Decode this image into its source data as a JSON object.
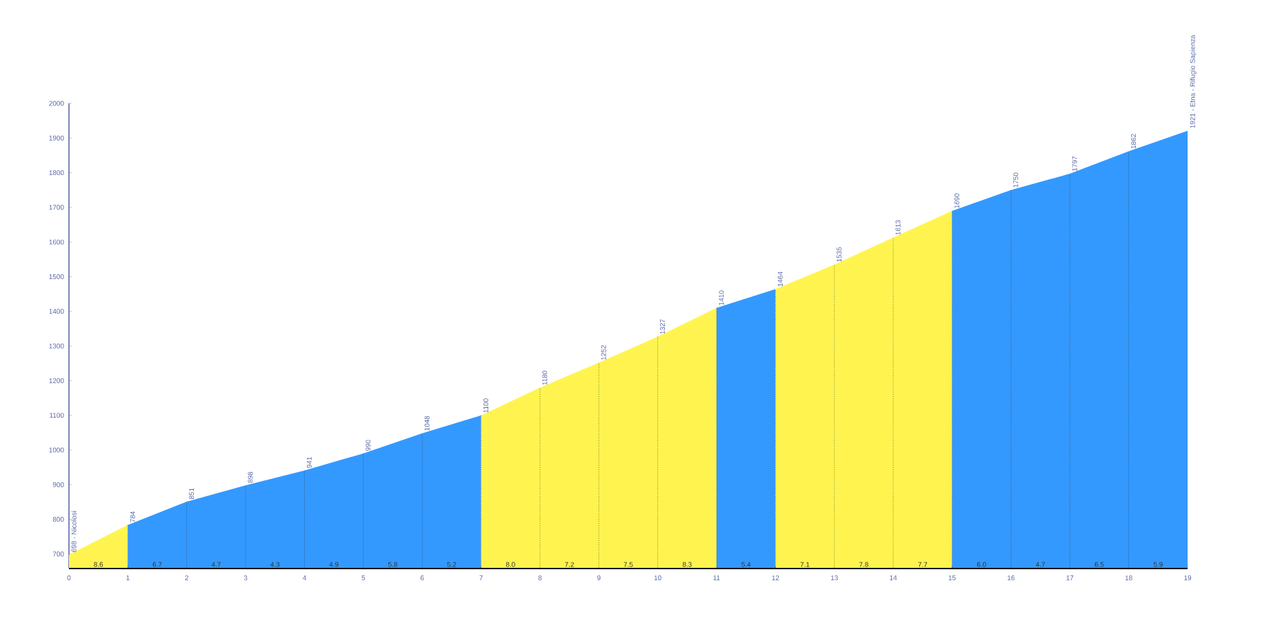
{
  "chart_data": {
    "type": "area",
    "xticks": [
      0,
      1,
      2,
      3,
      4,
      5,
      6,
      7,
      8,
      9,
      10,
      11,
      12,
      13,
      14,
      15,
      16,
      17,
      18,
      19
    ],
    "grid": "x",
    "xlim": [
      0,
      19
    ],
    "ylim": [
      660,
      2000
    ],
    "yticks": [
      700,
      800,
      900,
      1000,
      1100,
      1200,
      1300,
      1400,
      1500,
      1600,
      1700,
      1800,
      1900,
      2000
    ],
    "series": [
      {
        "color": "#fff44f",
        "x": [
          0,
          1
        ],
        "values": [
          698,
          784
        ],
        "value_labels": [
          "698 - Nicolosi",
          null
        ]
      },
      {
        "color": "#3399ff",
        "x": [
          1,
          2,
          3,
          4,
          5,
          6,
          7
        ],
        "values": [
          784,
          851,
          898,
          941,
          990,
          1048,
          1100
        ],
        "value_labels": [
          "784",
          "851",
          "898",
          "941",
          "990",
          "1048",
          null
        ]
      },
      {
        "color": "#fff44f",
        "x": [
          7,
          8,
          9,
          10,
          11
        ],
        "values": [
          1100,
          1180,
          1252,
          1327,
          1410
        ],
        "value_labels": [
          "1100",
          "1180",
          "1252",
          "1327",
          null
        ]
      },
      {
        "color": "#3399ff",
        "x": [
          11,
          12
        ],
        "values": [
          1410,
          1464
        ],
        "value_labels": [
          "1410",
          null
        ]
      },
      {
        "color": "#fff44f",
        "x": [
          12,
          13,
          14,
          15
        ],
        "values": [
          1464,
          1535,
          1613,
          1690
        ],
        "value_labels": [
          "1464",
          "1535",
          "1613",
          null
        ]
      },
      {
        "color": "#3399ff",
        "x": [
          15,
          16,
          17,
          18,
          19
        ],
        "values": [
          1690,
          1750,
          1797,
          1862,
          1921
        ],
        "value_labels": [
          "1690",
          "1750",
          "1797",
          "1862",
          "1921 - Etna - Rifugio Sapienza"
        ]
      }
    ],
    "annotations": [
      "8.6",
      "6.7",
      "4.7",
      "4.3",
      "4.9",
      "5.8",
      "5.2",
      "8.0",
      "7.2",
      "7.5",
      "8.3",
      "5.4",
      "7.1",
      "7.8",
      "7.7",
      "6.0",
      "4.7",
      "6.5",
      "5.9"
    ]
  }
}
